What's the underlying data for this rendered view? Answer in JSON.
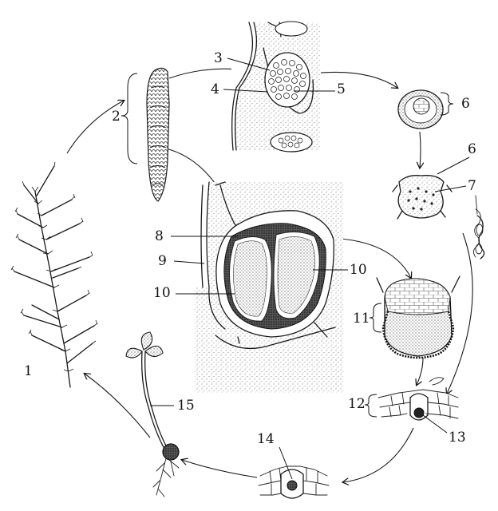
{
  "labels": {
    "l1": "1",
    "l2": "2",
    "l3": "3",
    "l4": "4",
    "l5": "5",
    "l6a": "6",
    "l6b": "6",
    "l7": "7",
    "l8": "8",
    "l9": "9",
    "l10a": "10",
    "l10b": "10",
    "l11": "11",
    "l12": "12",
    "l13": "13",
    "l14": "14",
    "l15": "15"
  },
  "icons": [
    "club-moss-plant-icon",
    "strobilus-cone-icon",
    "sporangium-section-icon",
    "spore-icon",
    "germinating-spore-icon",
    "antherozoid-icon",
    "strobilus-section-icon",
    "archegonium-icon",
    "fertilized-egg-icon",
    "embryo-icon",
    "young-sporophyte-icon"
  ]
}
